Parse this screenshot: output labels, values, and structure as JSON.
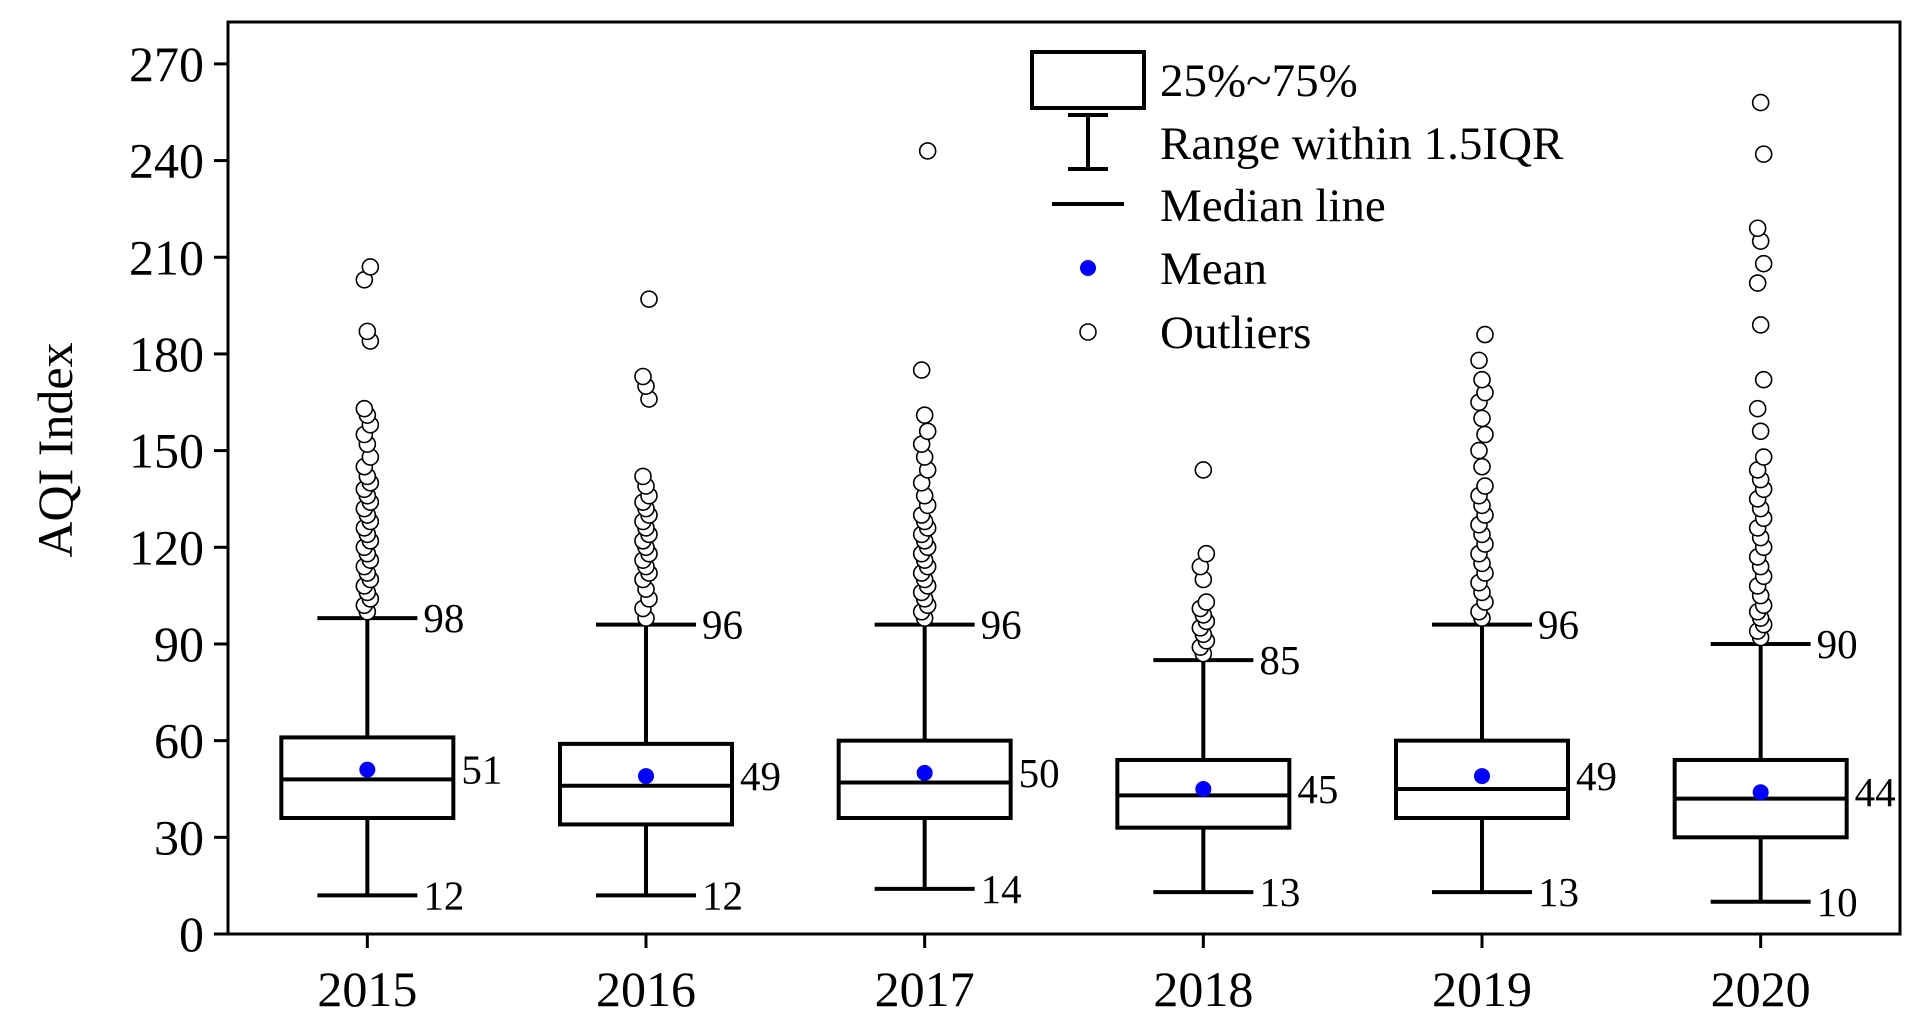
{
  "chart_data": {
    "type": "box",
    "title": "",
    "xlabel": "",
    "ylabel": "AQI Index",
    "ylim": [
      0,
      270
    ],
    "yticks": [
      0,
      30,
      60,
      90,
      120,
      150,
      180,
      210,
      240,
      270
    ],
    "categories": [
      "2015",
      "2016",
      "2017",
      "2018",
      "2019",
      "2020"
    ],
    "boxes": [
      {
        "year": "2015",
        "q1": 36,
        "median": 48,
        "q3": 61,
        "mean": 51,
        "whisker_low": 12,
        "whisker_high": 98,
        "labels": {
          "high": "98",
          "mean": "51",
          "low": "12"
        },
        "outliers": [
          100,
          102,
          104,
          106,
          108,
          110,
          112,
          114,
          116,
          118,
          120,
          122,
          124,
          126,
          128,
          130,
          132,
          134,
          136,
          138,
          140,
          142,
          145,
          148,
          152,
          155,
          158,
          161,
          163,
          184,
          187,
          203,
          207
        ]
      },
      {
        "year": "2016",
        "q1": 34,
        "median": 46,
        "q3": 59,
        "mean": 49,
        "whisker_low": 12,
        "whisker_high": 96,
        "labels": {
          "high": "96",
          "mean": "49",
          "low": "12"
        },
        "outliers": [
          98,
          101,
          104,
          107,
          110,
          112,
          114,
          116,
          118,
          120,
          122,
          124,
          126,
          128,
          130,
          132,
          134,
          136,
          139,
          142,
          166,
          170,
          173,
          197
        ]
      },
      {
        "year": "2017",
        "q1": 36,
        "median": 47,
        "q3": 60,
        "mean": 50,
        "whisker_low": 14,
        "whisker_high": 96,
        "labels": {
          "high": "96",
          "mean": "50",
          "low": "14"
        },
        "outliers": [
          98,
          100,
          102,
          104,
          106,
          108,
          110,
          112,
          114,
          116,
          118,
          120,
          122,
          124,
          126,
          128,
          130,
          133,
          136,
          140,
          144,
          148,
          152,
          156,
          161,
          175,
          243
        ]
      },
      {
        "year": "2018",
        "q1": 33,
        "median": 43,
        "q3": 54,
        "mean": 45,
        "whisker_low": 13,
        "whisker_high": 85,
        "labels": {
          "high": "85",
          "mean": "45",
          "low": "13"
        },
        "outliers": [
          87,
          89,
          91,
          93,
          95,
          97,
          99,
          101,
          103,
          110,
          114,
          118,
          144
        ]
      },
      {
        "year": "2019",
        "q1": 36,
        "median": 45,
        "q3": 60,
        "mean": 49,
        "whisker_low": 13,
        "whisker_high": 96,
        "labels": {
          "high": "96",
          "mean": "49",
          "low": "13"
        },
        "outliers": [
          98,
          100,
          103,
          106,
          109,
          112,
          115,
          118,
          121,
          124,
          127,
          130,
          133,
          136,
          139,
          145,
          150,
          155,
          160,
          165,
          168,
          172,
          178,
          186
        ]
      },
      {
        "year": "2020",
        "q1": 30,
        "median": 42,
        "q3": 54,
        "mean": 44,
        "whisker_low": 10,
        "whisker_high": 90,
        "labels": {
          "high": "90",
          "mean": "44",
          "low": "10"
        },
        "outliers": [
          92,
          94,
          96,
          98,
          100,
          102,
          105,
          108,
          111,
          114,
          117,
          120,
          123,
          126,
          129,
          132,
          135,
          138,
          141,
          144,
          148,
          156,
          163,
          172,
          189,
          202,
          208,
          215,
          219,
          242,
          258
        ]
      }
    ],
    "legend": {
      "position": "top-center",
      "items": [
        {
          "symbol": "box",
          "label": "25%~75%"
        },
        {
          "symbol": "whisker",
          "label": "Range within 1.5IQR"
        },
        {
          "symbol": "line",
          "label": "Median line"
        },
        {
          "symbol": "mean-dot",
          "label": "Mean"
        },
        {
          "symbol": "outlier-circle",
          "label": "Outliers"
        }
      ]
    },
    "colors": {
      "mean": "#0000ff",
      "line": "#000000",
      "outlier_fill": "#ffffff"
    }
  }
}
